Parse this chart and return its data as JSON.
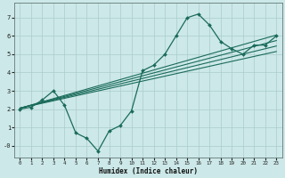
{
  "xlabel": "Humidex (Indice chaleur)",
  "bg_color": "#cce8e8",
  "grid_color": "#aacccc",
  "line_color": "#1a6b5a",
  "xlim": [
    -0.5,
    23.5
  ],
  "ylim": [
    -0.65,
    7.8
  ],
  "xticks": [
    0,
    1,
    2,
    3,
    4,
    5,
    6,
    7,
    8,
    9,
    10,
    11,
    12,
    13,
    14,
    15,
    16,
    17,
    18,
    19,
    20,
    21,
    22,
    23
  ],
  "yticks": [
    0,
    1,
    2,
    3,
    4,
    5,
    6,
    7
  ],
  "ytick_labels": [
    "-0",
    "1",
    "2",
    "3",
    "4",
    "5",
    "6",
    "7"
  ],
  "curve1_x": [
    0,
    1,
    2,
    3,
    4,
    5,
    6,
    7,
    8,
    9,
    10,
    11,
    12,
    13,
    14,
    15,
    16,
    17,
    18,
    19,
    20,
    21,
    22,
    23
  ],
  "curve1_y": [
    2.0,
    2.1,
    2.5,
    3.0,
    2.2,
    0.7,
    0.4,
    -0.3,
    0.8,
    1.1,
    1.9,
    4.1,
    4.4,
    5.0,
    6.0,
    7.0,
    7.2,
    6.6,
    5.7,
    5.3,
    5.0,
    5.5,
    5.5,
    6.0
  ],
  "straight_lines": [
    {
      "x0": 0,
      "y0": 2.05,
      "x1": 23,
      "y1": 6.05
    },
    {
      "x0": 0,
      "y0": 2.05,
      "x1": 23,
      "y1": 5.75
    },
    {
      "x0": 0,
      "y0": 2.05,
      "x1": 23,
      "y1": 5.45
    },
    {
      "x0": 0,
      "y0": 2.05,
      "x1": 23,
      "y1": 5.15
    }
  ]
}
